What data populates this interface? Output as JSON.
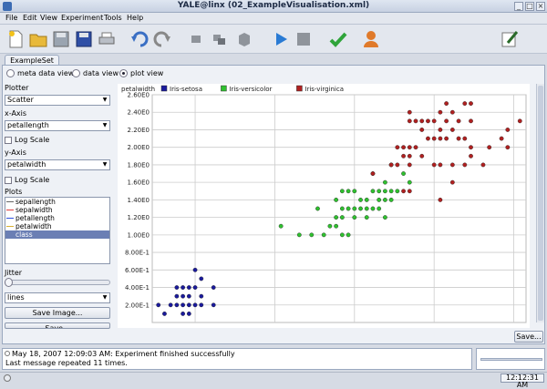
{
  "window": {
    "title": "YALE@linx (02_ExampleVisualisation.xml)"
  },
  "menu": [
    "File",
    "Edit",
    "View",
    "Experiment",
    "Tools",
    "Help"
  ],
  "toolbar": {
    "icons": [
      "new-icon",
      "open-icon",
      "save-icon",
      "save-as-icon",
      "print-icon",
      "undo-icon",
      "redo-icon",
      "cut-icon",
      "copy-icon",
      "paste-icon",
      "run-icon",
      "stop-icon",
      "validate-icon",
      "user-icon",
      "edit-icon"
    ]
  },
  "tabs": {
    "active": "ExampleSet"
  },
  "views": {
    "meta": "meta data view",
    "data": "data view",
    "plot": "plot view",
    "selected": "plot"
  },
  "settings": {
    "plotter_label": "Plotter",
    "plotter_value": "Scatter",
    "x_axis_label": "x-Axis",
    "x_axis_value": "petallength",
    "x_log_label": "Log Scale",
    "y_axis_label": "y-Axis",
    "y_axis_value": "petalwidth",
    "y_log_label": "Log Scale",
    "plots_label": "Plots",
    "plots": [
      {
        "name": "sepallength",
        "color": "#666666"
      },
      {
        "name": "sepalwidth",
        "color": "#e04040"
      },
      {
        "name": "petallength",
        "color": "#3050e0"
      },
      {
        "name": "petalwidth",
        "color": "#d8b030"
      },
      {
        "name": "class",
        "color": "#6b7fb4",
        "selected": true
      }
    ],
    "jitter_label": "Jitter",
    "jitter_value": 0,
    "line_style_value": "lines",
    "save_image_label": "Save Image...",
    "save_partial_label": "Save..."
  },
  "chart_data": {
    "type": "scatter",
    "ylabel": "petalwidth",
    "ylim": [
      0.0,
      2.6
    ],
    "xlim": [
      0.9,
      7.0
    ],
    "y_ticks": [
      "2.00E-1",
      "4.00E-1",
      "6.00E-1",
      "8.00E-1",
      "1.00E0",
      "1.20E0",
      "1.40E0",
      "1.60E0",
      "1.80E0",
      "2.00E0",
      "2.20E0",
      "2.40E0",
      "2.60E0"
    ],
    "y_tick_values": [
      0.2,
      0.4,
      0.6,
      0.8,
      1.0,
      1.2,
      1.4,
      1.6,
      1.8,
      2.0,
      2.2,
      2.4,
      2.6
    ],
    "x_gridlines": [
      1.6,
      2.9,
      4.2,
      5.5,
      6.8
    ],
    "series": [
      {
        "name": "Iris-setosa",
        "color": "#1a1a9c",
        "points": [
          [
            1.0,
            0.2
          ],
          [
            1.1,
            0.1
          ],
          [
            1.2,
            0.2
          ],
          [
            1.3,
            0.2
          ],
          [
            1.3,
            0.3
          ],
          [
            1.4,
            0.1
          ],
          [
            1.4,
            0.2
          ],
          [
            1.4,
            0.3
          ],
          [
            1.5,
            0.1
          ],
          [
            1.5,
            0.2
          ],
          [
            1.5,
            0.4
          ],
          [
            1.6,
            0.2
          ],
          [
            1.6,
            0.4
          ],
          [
            1.7,
            0.2
          ],
          [
            1.7,
            0.3
          ],
          [
            1.7,
            0.5
          ],
          [
            1.9,
            0.2
          ],
          [
            1.9,
            0.4
          ],
          [
            1.3,
            0.4
          ],
          [
            1.5,
            0.3
          ],
          [
            1.6,
            0.6
          ],
          [
            1.4,
            0.4
          ]
        ]
      },
      {
        "name": "Iris-versicolor",
        "color": "#2fc02f",
        "points": [
          [
            3.0,
            1.1
          ],
          [
            3.3,
            1.0
          ],
          [
            3.5,
            1.0
          ],
          [
            3.6,
            1.3
          ],
          [
            3.7,
            1.0
          ],
          [
            3.8,
            1.1
          ],
          [
            3.9,
            1.1
          ],
          [
            3.9,
            1.2
          ],
          [
            3.9,
            1.4
          ],
          [
            4.0,
            1.0
          ],
          [
            4.0,
            1.2
          ],
          [
            4.0,
            1.3
          ],
          [
            4.1,
            1.0
          ],
          [
            4.1,
            1.3
          ],
          [
            4.2,
            1.2
          ],
          [
            4.2,
            1.3
          ],
          [
            4.3,
            1.3
          ],
          [
            4.4,
            1.2
          ],
          [
            4.4,
            1.3
          ],
          [
            4.4,
            1.4
          ],
          [
            4.5,
            1.3
          ],
          [
            4.5,
            1.5
          ],
          [
            4.6,
            1.3
          ],
          [
            4.6,
            1.4
          ],
          [
            4.6,
            1.5
          ],
          [
            4.7,
            1.2
          ],
          [
            4.7,
            1.4
          ],
          [
            4.7,
            1.5
          ],
          [
            4.7,
            1.6
          ],
          [
            4.8,
            1.4
          ],
          [
            4.8,
            1.8
          ],
          [
            4.9,
            1.5
          ],
          [
            5.0,
            1.7
          ],
          [
            5.1,
            1.6
          ],
          [
            4.5,
            1.7
          ],
          [
            4.1,
            1.5
          ],
          [
            4.8,
            1.5
          ],
          [
            4.2,
            1.5
          ],
          [
            4.3,
            1.4
          ],
          [
            4.0,
            1.5
          ]
        ]
      },
      {
        "name": "Iris-virginica",
        "color": "#b02020",
        "points": [
          [
            4.5,
            1.7
          ],
          [
            4.8,
            1.8
          ],
          [
            4.9,
            1.8
          ],
          [
            5.0,
            1.5
          ],
          [
            5.0,
            2.0
          ],
          [
            5.1,
            1.5
          ],
          [
            5.1,
            1.8
          ],
          [
            5.1,
            1.9
          ],
          [
            5.1,
            2.0
          ],
          [
            5.1,
            2.3
          ],
          [
            5.1,
            2.4
          ],
          [
            5.2,
            2.0
          ],
          [
            5.2,
            2.3
          ],
          [
            5.3,
            1.9
          ],
          [
            5.3,
            2.3
          ],
          [
            5.4,
            2.1
          ],
          [
            5.4,
            2.3
          ],
          [
            5.5,
            1.8
          ],
          [
            5.5,
            2.1
          ],
          [
            5.6,
            1.4
          ],
          [
            5.6,
            1.8
          ],
          [
            5.6,
            2.1
          ],
          [
            5.6,
            2.2
          ],
          [
            5.6,
            2.4
          ],
          [
            5.7,
            2.1
          ],
          [
            5.7,
            2.3
          ],
          [
            5.7,
            2.5
          ],
          [
            5.8,
            1.6
          ],
          [
            5.8,
            1.8
          ],
          [
            5.8,
            2.2
          ],
          [
            5.9,
            2.1
          ],
          [
            5.9,
            2.3
          ],
          [
            6.0,
            1.8
          ],
          [
            6.0,
            2.5
          ],
          [
            6.1,
            1.9
          ],
          [
            6.1,
            2.3
          ],
          [
            6.1,
            2.5
          ],
          [
            6.3,
            1.8
          ],
          [
            6.4,
            2.0
          ],
          [
            6.6,
            2.1
          ],
          [
            6.7,
            2.0
          ],
          [
            6.7,
            2.2
          ],
          [
            6.9,
            2.3
          ],
          [
            4.9,
            2.0
          ],
          [
            5.0,
            1.9
          ],
          [
            5.8,
            2.4
          ],
          [
            5.5,
            2.3
          ],
          [
            6.0,
            2.1
          ],
          [
            5.3,
            2.2
          ],
          [
            6.1,
            2.0
          ]
        ]
      }
    ],
    "legend": [
      "Iris-setosa",
      "Iris-versicolor",
      "Iris-virginica"
    ],
    "legend_position": "top-left"
  },
  "save_button_label": "Save...",
  "log": {
    "line1": "May 18, 2007 12:09:03 AM: Experiment finished successfully",
    "line2": "Last message repeated 11 times."
  },
  "status": {
    "clock": "12:12:31 AM"
  }
}
